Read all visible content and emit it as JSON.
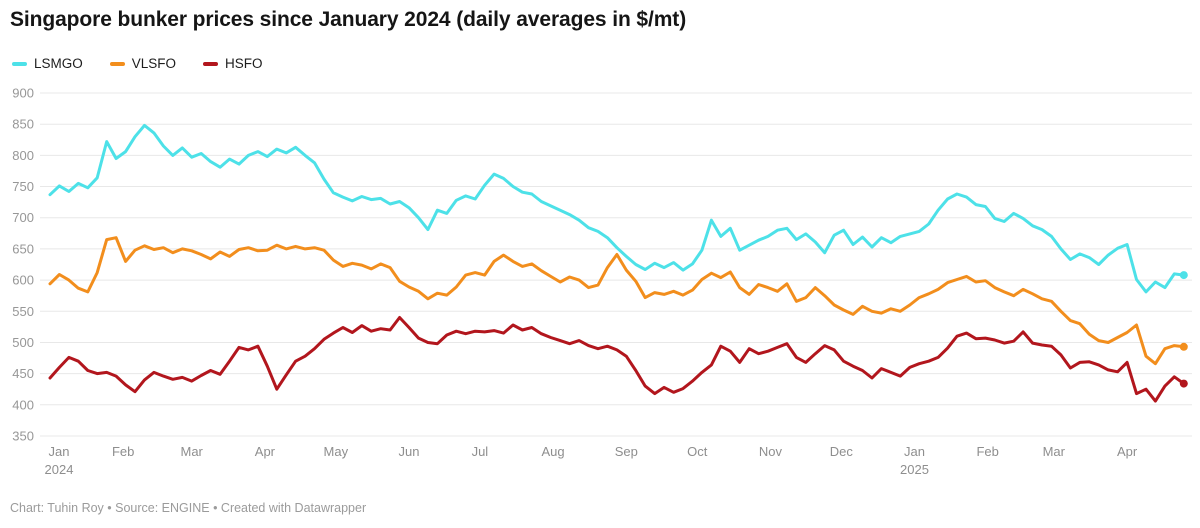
{
  "title": "Singapore bunker prices since January 2024 (daily averages in $/mt)",
  "footer": "Chart: Tuhin Roy • Source: ENGINE • Created with Datawrapper",
  "legend": [
    {
      "label": "LSMGO",
      "color": "#4de1e8"
    },
    {
      "label": "VLSFO",
      "color": "#f28e1d"
    },
    {
      "label": "HSFO",
      "color": "#b2161d"
    }
  ],
  "chart_data": {
    "type": "line",
    "title": "Singapore bunker prices since January 2024 (daily averages in $/mt)",
    "xlabel": "",
    "ylabel": "$/mt",
    "ylim": [
      350,
      900
    ],
    "grid": true,
    "legend_position": "top-left",
    "grid_color": "#e8e8e8",
    "axis_label_color": "#8e8e8e",
    "x_unit": "days since 2024-01-01",
    "day_step": 4,
    "x_range_days": [
      0,
      480
    ],
    "y_ticks": [
      900,
      850,
      800,
      750,
      700,
      650,
      600,
      550,
      500,
      450,
      400,
      350
    ],
    "x_ticks": [
      {
        "label": "Jan",
        "sublabel": "2024",
        "day": 0
      },
      {
        "label": "Feb",
        "day": 31
      },
      {
        "label": "Mar",
        "day": 60
      },
      {
        "label": "Apr",
        "day": 91
      },
      {
        "label": "May",
        "day": 121
      },
      {
        "label": "Jun",
        "day": 152
      },
      {
        "label": "Jul",
        "day": 182
      },
      {
        "label": "Aug",
        "day": 213
      },
      {
        "label": "Sep",
        "day": 244
      },
      {
        "label": "Oct",
        "day": 274
      },
      {
        "label": "Nov",
        "day": 305
      },
      {
        "label": "Dec",
        "day": 335
      },
      {
        "label": "Jan",
        "sublabel": "2025",
        "day": 366
      },
      {
        "label": "Feb",
        "day": 397
      },
      {
        "label": "Mar",
        "day": 425
      },
      {
        "label": "Apr",
        "day": 456
      }
    ],
    "series": [
      {
        "name": "LSMGO",
        "color": "#4de1e8",
        "values": [
          737,
          751,
          742,
          755,
          748,
          764,
          822,
          795,
          806,
          830,
          848,
          836,
          815,
          800,
          812,
          797,
          803,
          790,
          781,
          794,
          786,
          800,
          806,
          798,
          810,
          804,
          813,
          800,
          788,
          762,
          740,
          733,
          727,
          734,
          729,
          731,
          722,
          726,
          716,
          700,
          681,
          712,
          707,
          728,
          735,
          730,
          752,
          770,
          763,
          750,
          741,
          738,
          726,
          719,
          712,
          705,
          696,
          684,
          678,
          668,
          652,
          638,
          625,
          617,
          627,
          620,
          628,
          616,
          626,
          648,
          696,
          670,
          683,
          648,
          656,
          664,
          670,
          680,
          683,
          665,
          674,
          661,
          644,
          672,
          680,
          657,
          669,
          653,
          668,
          660,
          670,
          674,
          678,
          690,
          712,
          730,
          738,
          733,
          721,
          718,
          699,
          694,
          707,
          699,
          687,
          681,
          670,
          650,
          633,
          642,
          636,
          625,
          640,
          651,
          657,
          601,
          581,
          597,
          588,
          610,
          608
        ]
      },
      {
        "name": "VLSFO",
        "color": "#f28e1d",
        "values": [
          594,
          609,
          600,
          587,
          581,
          612,
          665,
          668,
          630,
          648,
          655,
          649,
          652,
          644,
          650,
          647,
          641,
          634,
          645,
          638,
          649,
          652,
          647,
          648,
          656,
          650,
          654,
          650,
          652,
          648,
          632,
          622,
          627,
          624,
          618,
          626,
          620,
          598,
          589,
          582,
          570,
          579,
          576,
          589,
          608,
          612,
          608,
          630,
          640,
          630,
          622,
          626,
          615,
          606,
          597,
          605,
          600,
          588,
          592,
          620,
          641,
          616,
          598,
          572,
          580,
          577,
          582,
          576,
          584,
          601,
          611,
          604,
          613,
          588,
          577,
          593,
          588,
          582,
          594,
          566,
          572,
          588,
          575,
          560,
          552,
          545,
          558,
          550,
          547,
          554,
          550,
          560,
          572,
          578,
          585,
          596,
          601,
          606,
          597,
          599,
          588,
          581,
          575,
          585,
          578,
          570,
          566,
          550,
          535,
          530,
          513,
          503,
          500,
          508,
          516,
          528,
          478,
          466,
          490,
          495,
          493
        ]
      },
      {
        "name": "HSFO",
        "color": "#b2161d",
        "values": [
          443,
          460,
          476,
          470,
          455,
          450,
          452,
          446,
          432,
          421,
          440,
          452,
          446,
          441,
          444,
          438,
          447,
          455,
          449,
          470,
          492,
          488,
          494,
          462,
          425,
          448,
          470,
          478,
          490,
          505,
          515,
          524,
          516,
          527,
          518,
          522,
          520,
          540,
          524,
          507,
          500,
          498,
          512,
          518,
          514,
          518,
          517,
          519,
          515,
          528,
          520,
          524,
          514,
          508,
          503,
          498,
          503,
          495,
          490,
          494,
          488,
          478,
          455,
          430,
          418,
          428,
          420,
          426,
          438,
          452,
          464,
          494,
          486,
          468,
          490,
          482,
          486,
          492,
          498,
          476,
          468,
          482,
          495,
          488,
          470,
          462,
          455,
          443,
          458,
          452,
          446,
          460,
          466,
          470,
          476,
          491,
          510,
          515,
          506,
          507,
          504,
          499,
          502,
          517,
          499,
          496,
          494,
          480,
          459,
          468,
          469,
          464,
          456,
          453,
          468,
          418,
          425,
          406,
          430,
          445,
          434
        ]
      }
    ]
  }
}
